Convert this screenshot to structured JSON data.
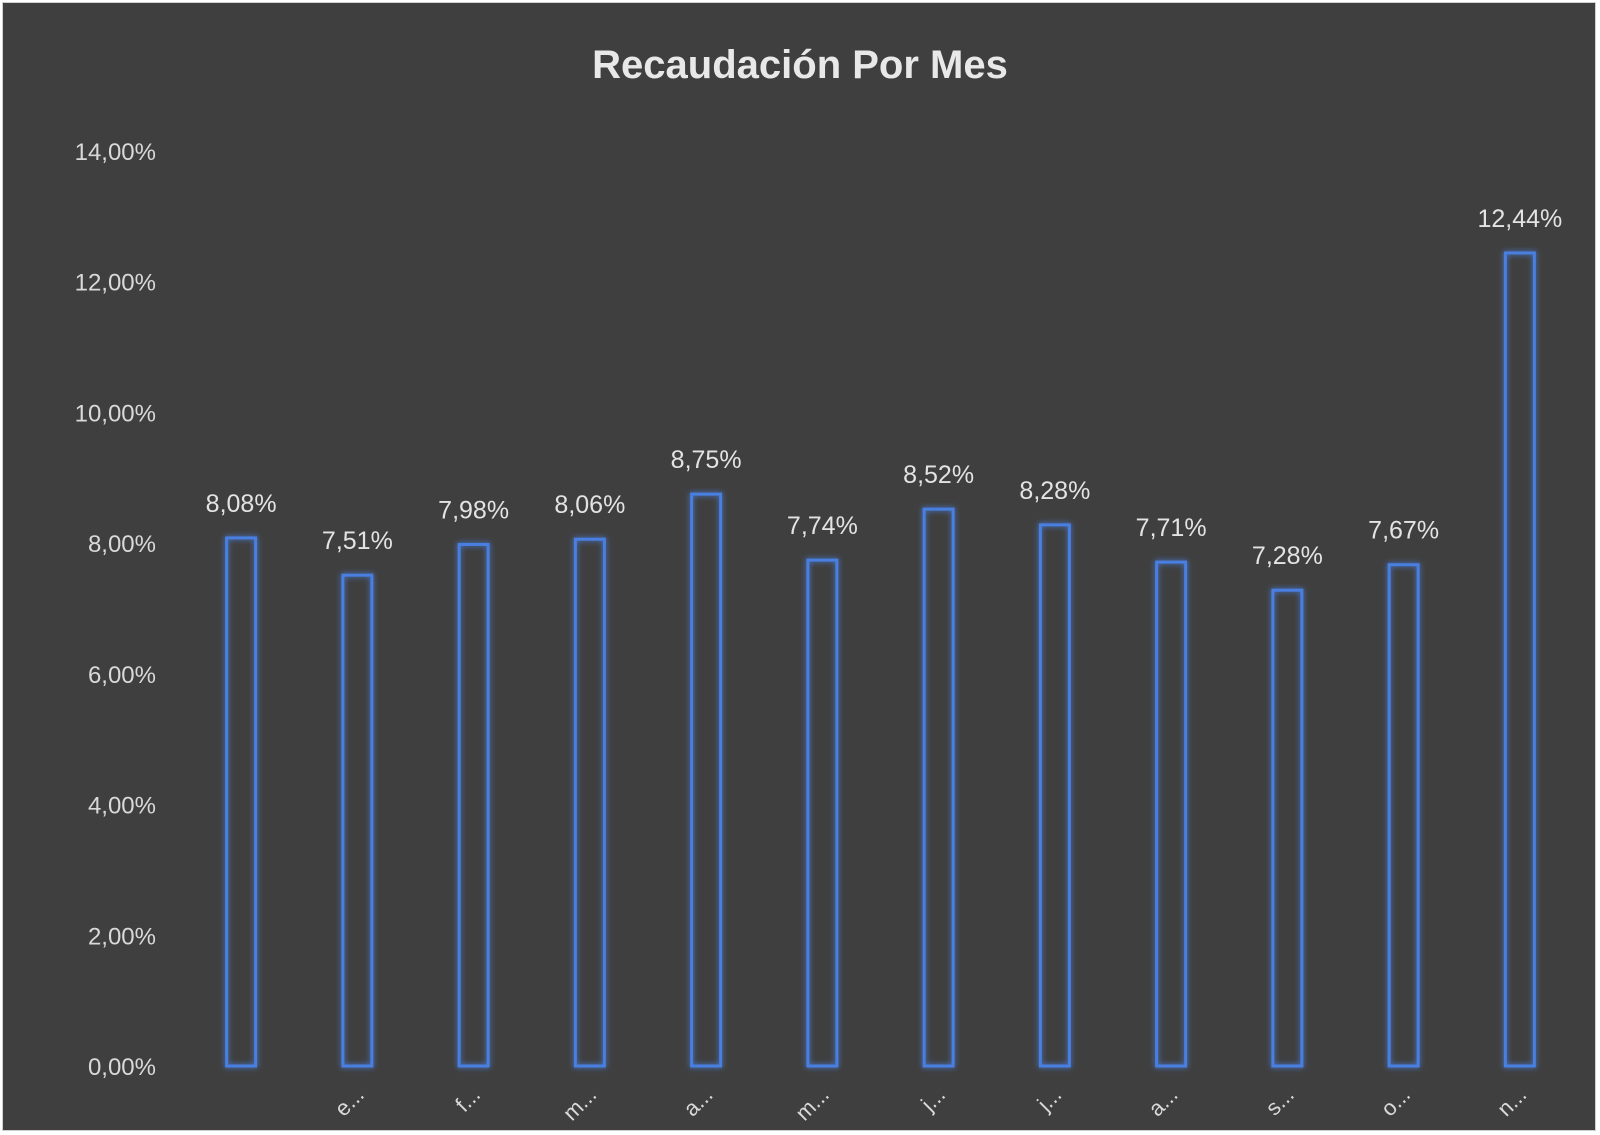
{
  "chart_data": {
    "type": "bar",
    "title": "Recaudación Por Mes",
    "xlabel": "",
    "ylabel": "",
    "ylim": [
      0,
      14
    ],
    "yticks": [
      0,
      2,
      4,
      6,
      8,
      10,
      12,
      14
    ],
    "ytick_labels": [
      "0,00%",
      "2,00%",
      "4,00%",
      "6,00%",
      "8,00%",
      "10,00%",
      "12,00%",
      "14,00%"
    ],
    "categories": [
      "",
      "e...",
      "f...",
      "m...",
      "a...",
      "m...",
      "j...",
      "j...",
      "a...",
      "s...",
      "o...",
      "n..."
    ],
    "values": [
      8.08,
      7.51,
      7.98,
      8.06,
      8.75,
      7.74,
      8.52,
      8.28,
      7.71,
      7.28,
      7.67,
      12.44
    ],
    "value_labels": [
      "8,08%",
      "7,51%",
      "7,98%",
      "8,06%",
      "8,75%",
      "7,74%",
      "8,52%",
      "8,28%",
      "7,71%",
      "7,28%",
      "7,67%",
      "12,44%"
    ],
    "grid": false,
    "legend": "none",
    "colors": {
      "background": "#3f3f3f",
      "bar_outline": "#4a7fe0",
      "text": "#d9d9d9"
    }
  }
}
